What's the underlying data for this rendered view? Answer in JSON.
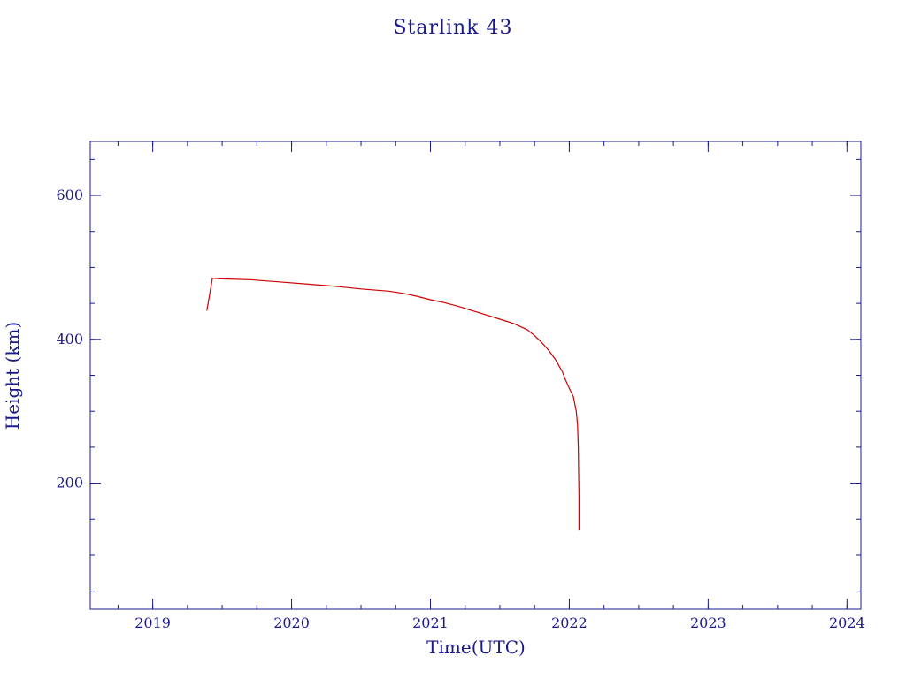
{
  "chart_data": {
    "type": "line",
    "title": "Starlink 43",
    "xlabel": "Time(UTC)",
    "ylabel": "Height (km)",
    "xlim": [
      2018.55,
      2024.1
    ],
    "ylim": [
      25,
      675
    ],
    "x_ticks": [
      2019,
      2020,
      2021,
      2022,
      2023,
      2024
    ],
    "x_tick_labels": [
      "2019",
      "2020",
      "2021",
      "2022",
      "2023",
      "2024"
    ],
    "x_minor_step": 0.25,
    "y_ticks": [
      200,
      400,
      600
    ],
    "y_tick_labels": [
      "200",
      "400",
      "600"
    ],
    "y_minor_step": 50,
    "grid": false,
    "colors": {
      "axes": "#1a1a8c",
      "series": "#cc0000"
    },
    "series": [
      {
        "x": [
          2019.39,
          2019.43,
          2019.5,
          2019.7,
          2019.9,
          2020.1,
          2020.3,
          2020.5,
          2020.7,
          2020.8,
          2020.9,
          2021.0,
          2021.1,
          2021.2,
          2021.3,
          2021.4,
          2021.5,
          2021.6,
          2021.7,
          2021.75,
          2021.8,
          2021.85,
          2021.9,
          2021.95,
          2021.97,
          2022.0,
          2022.03,
          2022.05,
          2022.06,
          2022.065,
          2022.07,
          2022.07
        ],
        "y": [
          440,
          485,
          484,
          483,
          480,
          477,
          474,
          470,
          467,
          464,
          460,
          455,
          451,
          446,
          440,
          434,
          428,
          422,
          413,
          405,
          396,
          385,
          372,
          355,
          345,
          332,
          320,
          300,
          280,
          250,
          180,
          134
        ]
      }
    ]
  }
}
